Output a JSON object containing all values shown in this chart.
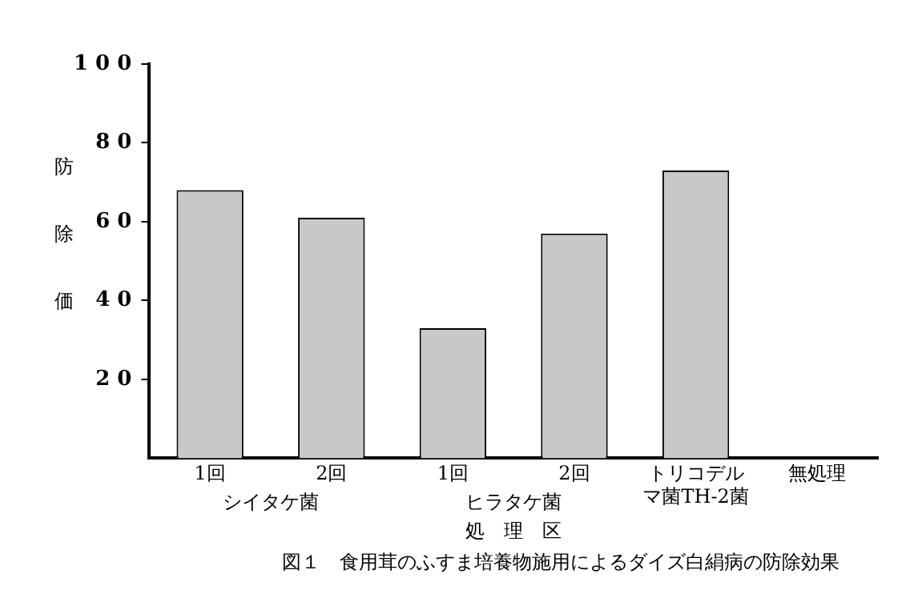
{
  "chart_data": {
    "type": "bar",
    "title": "図１　食用茸のふすま培養物施用によるダイズ白絹病の防除効果",
    "xlabel": "処　理　区",
    "ylabel": "防除価",
    "categories": [
      "1回",
      "2回",
      "1回",
      "2回",
      "トリコデルマ菌TH-2菌",
      "無処理"
    ],
    "values": [
      68,
      61,
      33,
      57,
      73,
      0
    ],
    "color": "#c8c8c8",
    "annotations": [
      "シイタケ菌",
      "ヒラタケ菌"
    ],
    "ylim": [
      0,
      100
    ],
    "yticks": [
      20,
      40,
      60,
      80,
      100
    ],
    "grid": false,
    "legend": false
  }
}
